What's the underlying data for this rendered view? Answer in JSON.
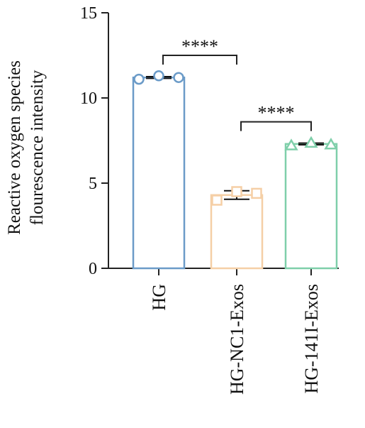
{
  "chart_data": {
    "type": "bar",
    "ylabel_lines": [
      "Reactive oxygen species",
      "flourescence intensity"
    ],
    "ylim": [
      0,
      15
    ],
    "yticks": [
      0,
      5,
      10,
      15
    ],
    "categories": [
      "HG",
      "HG-NC1-Exos",
      "HG-141I-Exos"
    ],
    "values": [
      11.2,
      4.3,
      7.3
    ],
    "errors": [
      0.05,
      0.25,
      0.05
    ],
    "points": [
      [
        11.1,
        11.3,
        11.2
      ],
      [
        4.0,
        4.5,
        4.4
      ],
      [
        7.2,
        7.35,
        7.25
      ]
    ],
    "markers": [
      "circle",
      "square",
      "triangle"
    ],
    "colors": [
      "#6b9bc8",
      "#f5cfa6",
      "#7fcfaa"
    ],
    "significance": [
      {
        "from": 0,
        "to": 1,
        "label": "****",
        "y": 12.5
      },
      {
        "from": 1,
        "to": 2,
        "label": "****",
        "y": 8.6
      }
    ],
    "grid": false,
    "legend": "none"
  }
}
